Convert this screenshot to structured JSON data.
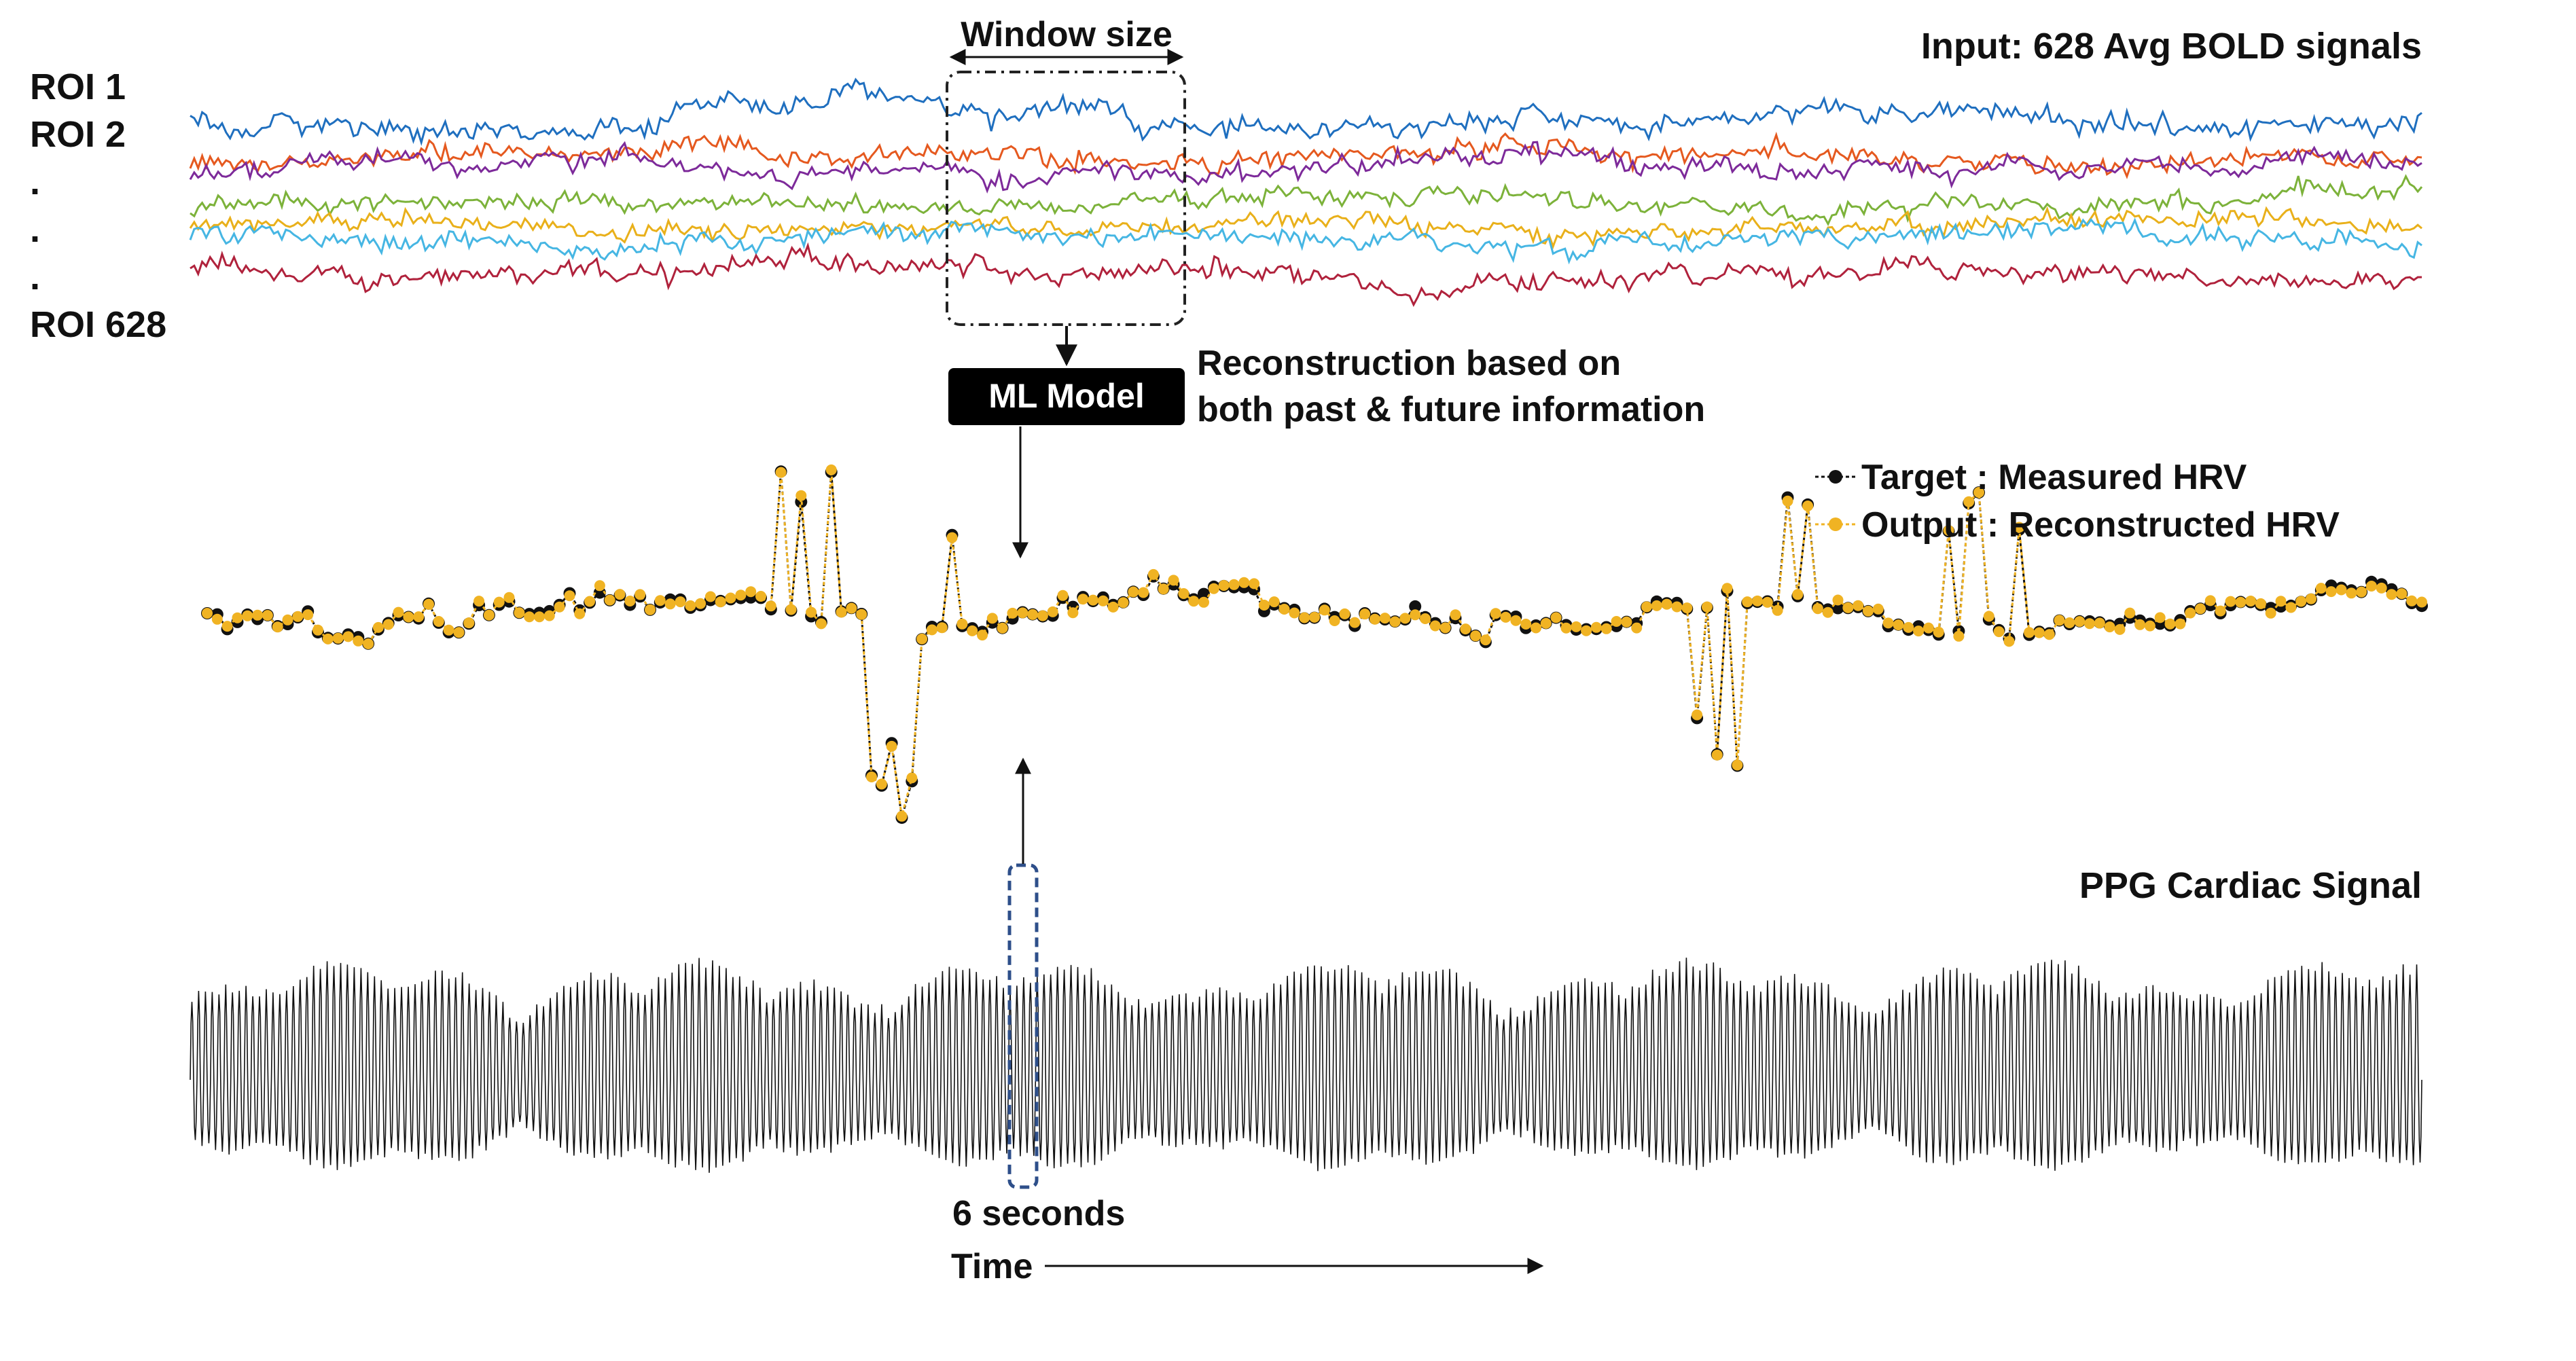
{
  "bold_panel": {
    "title": "Input: 628 Avg BOLD signals",
    "roi_labels": [
      "ROI 1",
      "ROI 2",
      ".",
      ".",
      ".",
      "ROI 628"
    ],
    "window_label": "Window size",
    "series_colors": [
      "#1f6fbf",
      "#e5591f",
      "#7d2a9a",
      "#7cb23a",
      "#e9b01a",
      "#46b6e3",
      "#b0223c"
    ]
  },
  "model": {
    "box_label": "ML Model",
    "note_line1": "Reconstruction based on",
    "note_line2": "both past & future information"
  },
  "hrv_panel": {
    "legend_target": "Target : Measured HRV",
    "legend_output": "Output : Reconstructed HRV",
    "target_color": "#111111",
    "output_color": "#f0b323"
  },
  "ppg_panel": {
    "title": "PPG Cardiac Signal",
    "window_label": "6 seconds",
    "window_color": "#2e4f8a"
  },
  "time_axis": {
    "label": "Time"
  }
}
